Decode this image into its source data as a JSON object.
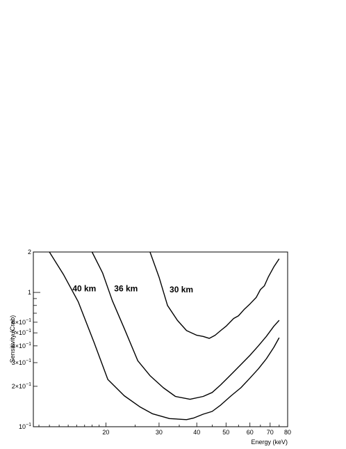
{
  "chart_data": {
    "type": "line",
    "title": "",
    "xlabel": "Energy (keV)",
    "ylabel": "Sensitivity (Crab)",
    "xscale": "log",
    "yscale": "log",
    "xlim": [
      11.5,
      80
    ],
    "ylim": [
      0.1,
      2
    ],
    "grid": false,
    "x_ticks": [
      {
        "value": 20,
        "label": "20"
      },
      {
        "value": 30,
        "label": "30"
      },
      {
        "value": 40,
        "label": "40"
      },
      {
        "value": 50,
        "label": "50"
      },
      {
        "value": 60,
        "label": "60"
      },
      {
        "value": 70,
        "label": "70"
      },
      {
        "value": 80,
        "label": "80"
      }
    ],
    "y_ticks": [
      {
        "value": 0.1,
        "base": "10",
        "exp": "−1"
      },
      {
        "value": 0.2,
        "base": "2×10",
        "exp": "−1"
      },
      {
        "value": 0.3,
        "base": "3×10",
        "exp": "−1"
      },
      {
        "value": 0.4,
        "base": "4×10",
        "exp": "−1"
      },
      {
        "value": 0.5,
        "base": "5×10",
        "exp": "−1"
      },
      {
        "value": 0.6,
        "base": "6×10",
        "exp": "−1"
      },
      {
        "value": 1,
        "base": "1",
        "exp": ""
      },
      {
        "value": 2,
        "base": "2",
        "exp": ""
      }
    ],
    "series": [
      {
        "name": "40 km",
        "label_at": [
          15.5,
          1.02
        ],
        "x": [
          13,
          14.5,
          16.2,
          18.3,
          20.3,
          23,
          26,
          28.5,
          32.5,
          37,
          39,
          42,
          45,
          48,
          52,
          56,
          60,
          64,
          68,
          72,
          75
        ],
        "y": [
          2.0,
          1.35,
          0.85,
          0.42,
          0.225,
          0.17,
          0.14,
          0.125,
          0.115,
          0.113,
          0.116,
          0.124,
          0.13,
          0.145,
          0.17,
          0.195,
          0.23,
          0.27,
          0.32,
          0.39,
          0.46
        ]
      },
      {
        "name": "36 km",
        "label_at": [
          21.3,
          1.02
        ],
        "x": [
          18,
          19.5,
          21,
          23,
          25.5,
          28,
          31,
          34,
          38,
          42,
          45,
          48,
          52,
          56,
          60,
          64,
          68,
          72,
          75
        ],
        "y": [
          2.0,
          1.4,
          0.87,
          0.54,
          0.31,
          0.24,
          0.195,
          0.168,
          0.16,
          0.168,
          0.18,
          0.205,
          0.245,
          0.29,
          0.34,
          0.4,
          0.47,
          0.56,
          0.62
        ]
      },
      {
        "name": "30 km",
        "label_at": [
          32.5,
          1.0
        ],
        "x": [
          28,
          30,
          32,
          34.5,
          37,
          40,
          42,
          44,
          46,
          48,
          50,
          53,
          55,
          57.5,
          60,
          63,
          65,
          67,
          69,
          72,
          75
        ],
        "y": [
          2.0,
          1.3,
          0.8,
          0.62,
          0.52,
          0.48,
          0.47,
          0.455,
          0.48,
          0.52,
          0.56,
          0.64,
          0.67,
          0.75,
          0.82,
          0.92,
          1.05,
          1.12,
          1.3,
          1.55,
          1.78
        ]
      }
    ]
  }
}
